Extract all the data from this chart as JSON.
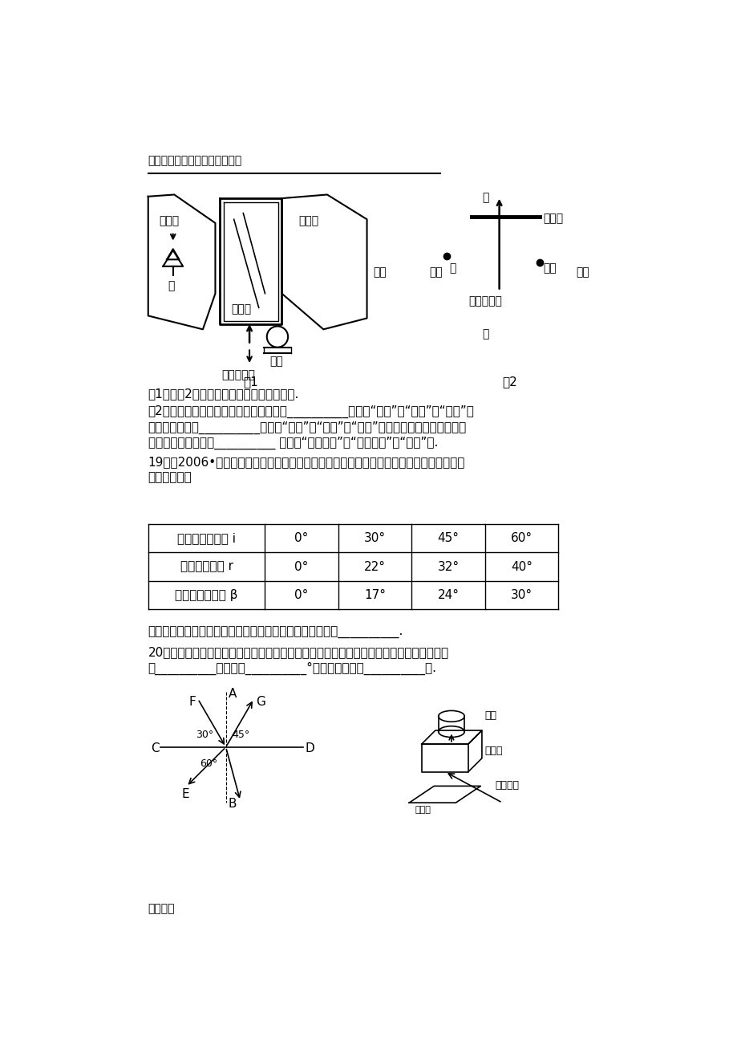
{
  "page_bg": "#ffffff",
  "header_text": "学习资料收集于网络，仅供参考",
  "footer_text": "学习资料",
  "fig1_label": "图1",
  "fig2_label": "图2",
  "table_headers": [
    "空气中的入射角 i",
    "0°",
    "30°",
    "45°",
    "60°"
  ],
  "table_row1": [
    "水中的折射角 r",
    "0°",
    "22°",
    "32°",
    "40°"
  ],
  "table_row2": [
    "玻璃中的折射角 β",
    "0°",
    "17°",
    "24°",
    "30°"
  ]
}
